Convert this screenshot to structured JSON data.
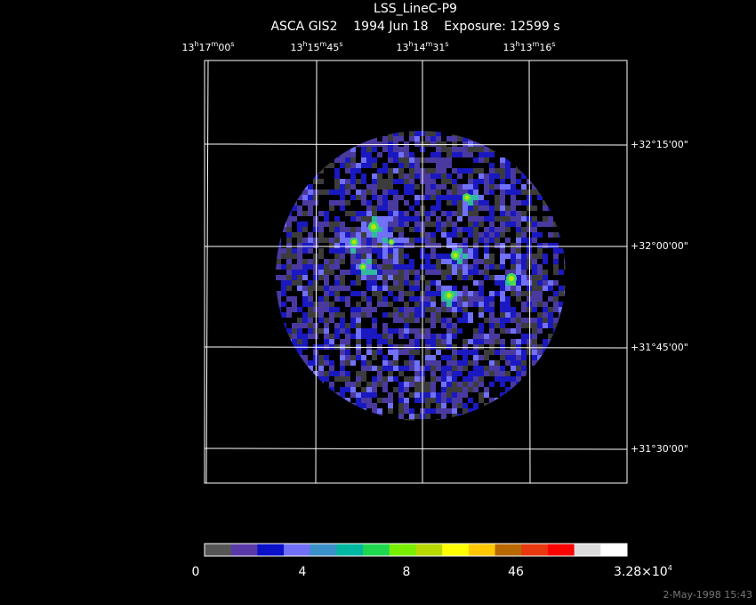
{
  "header": {
    "title": "LSS_LineC-P9",
    "subtitle": "ASCA GIS2    1994 Jun 18    Exposure: 12599 s"
  },
  "ra_labels": [
    [
      "13",
      "h",
      "17",
      "m",
      "00",
      "s"
    ],
    [
      "13",
      "h",
      "15",
      "m",
      "45",
      "s"
    ],
    [
      "13",
      "h",
      "14",
      "m",
      "31",
      "s"
    ],
    [
      "13",
      "h",
      "13",
      "m",
      "16",
      "s"
    ]
  ],
  "dec_labels": [
    "+32°15'00\"",
    "+32°00'00\"",
    "+31°45'00\"",
    "+31°30'00\""
  ],
  "colorbar": {
    "labels": [
      [
        "0"
      ],
      [
        "4"
      ],
      [
        "8"
      ],
      [
        "46"
      ],
      [
        "3.28×10",
        "4"
      ]
    ]
  },
  "footer": {
    "timestamp": "2-May-1998 15:43"
  }
}
